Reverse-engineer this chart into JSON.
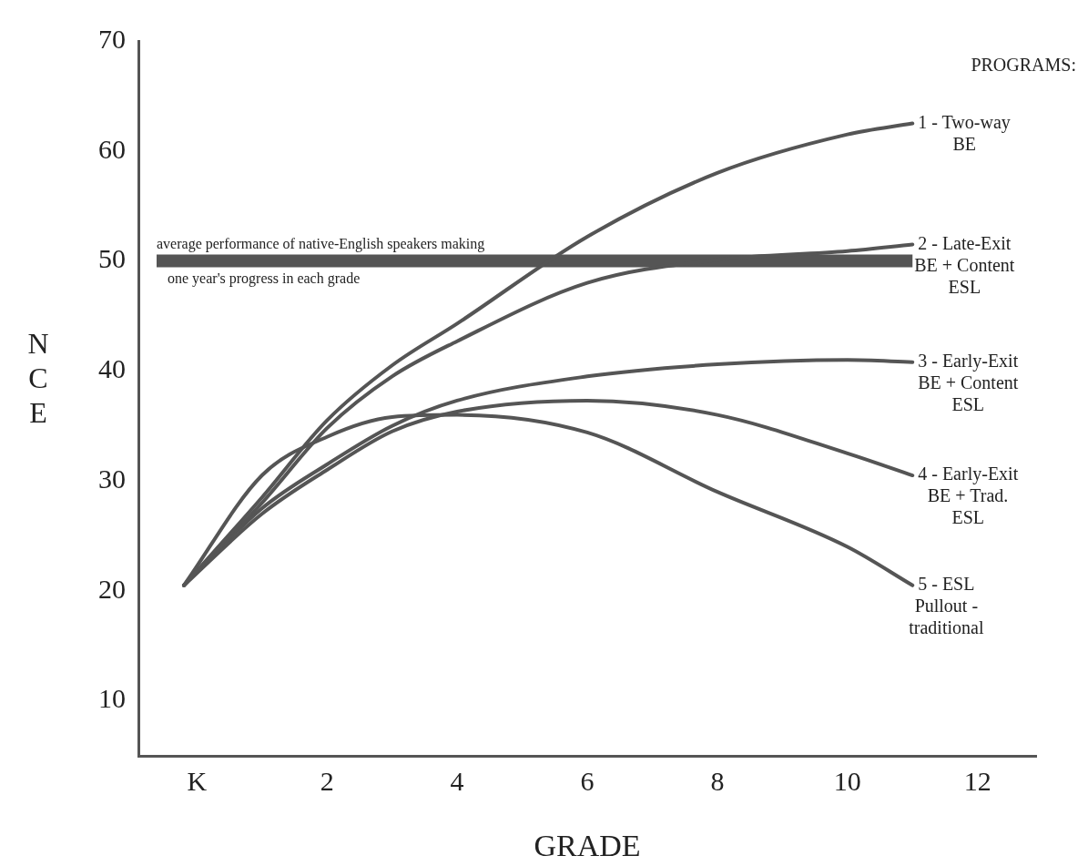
{
  "chart_data": {
    "type": "line",
    "xlabel": "GRADE",
    "ylabel": "NCE",
    "legend_title": "PROGRAMS:",
    "x": [
      -0.2,
      1,
      2,
      3,
      4,
      6,
      8,
      10,
      11
    ],
    "series": [
      {
        "name": "1 - Two-way BE",
        "color": "#555555",
        "values": [
          20.5,
          28.5,
          35.5,
          40.5,
          44.3,
          52.2,
          58,
          61.5,
          62.5
        ]
      },
      {
        "name": "2 - Late-Exit BE + Content ESL",
        "color": "#555555",
        "values": [
          20.5,
          28,
          34.8,
          39.5,
          42.7,
          48,
          50.1,
          50.9,
          51.5
        ]
      },
      {
        "name": "3 - Early-Exit BE + Content ESL",
        "color": "#555555",
        "values": [
          20.5,
          27.5,
          31.5,
          35,
          37.3,
          39.5,
          40.6,
          41,
          40.8
        ]
      },
      {
        "name": "4 - Early-Exit BE + Trad. ESL",
        "color": "#555555",
        "values": [
          20.5,
          27,
          31,
          34.5,
          36.3,
          37.3,
          36,
          32.5,
          30.5
        ]
      },
      {
        "name": "5 - ESL Pullout - traditional",
        "color": "#555555",
        "values": [
          20.5,
          30.5,
          34,
          35.8,
          36,
          34.4,
          29,
          24,
          20.5
        ]
      }
    ],
    "xlim": [
      -0.9,
      12.9
    ],
    "ylim": [
      5,
      70
    ],
    "xticks": [
      {
        "value": 0,
        "label": "K"
      },
      2,
      4,
      6,
      8,
      10,
      12
    ],
    "yticks": [
      10,
      20,
      30,
      40,
      50,
      60,
      70
    ],
    "ref_lines": [
      {
        "axis": "y",
        "value": 50,
        "label": "average performance of native-English speakers making one year's progress in each grade",
        "color": "#555555"
      }
    ],
    "grid": false,
    "legend": false,
    "marker": "none",
    "line_style": "solid"
  }
}
